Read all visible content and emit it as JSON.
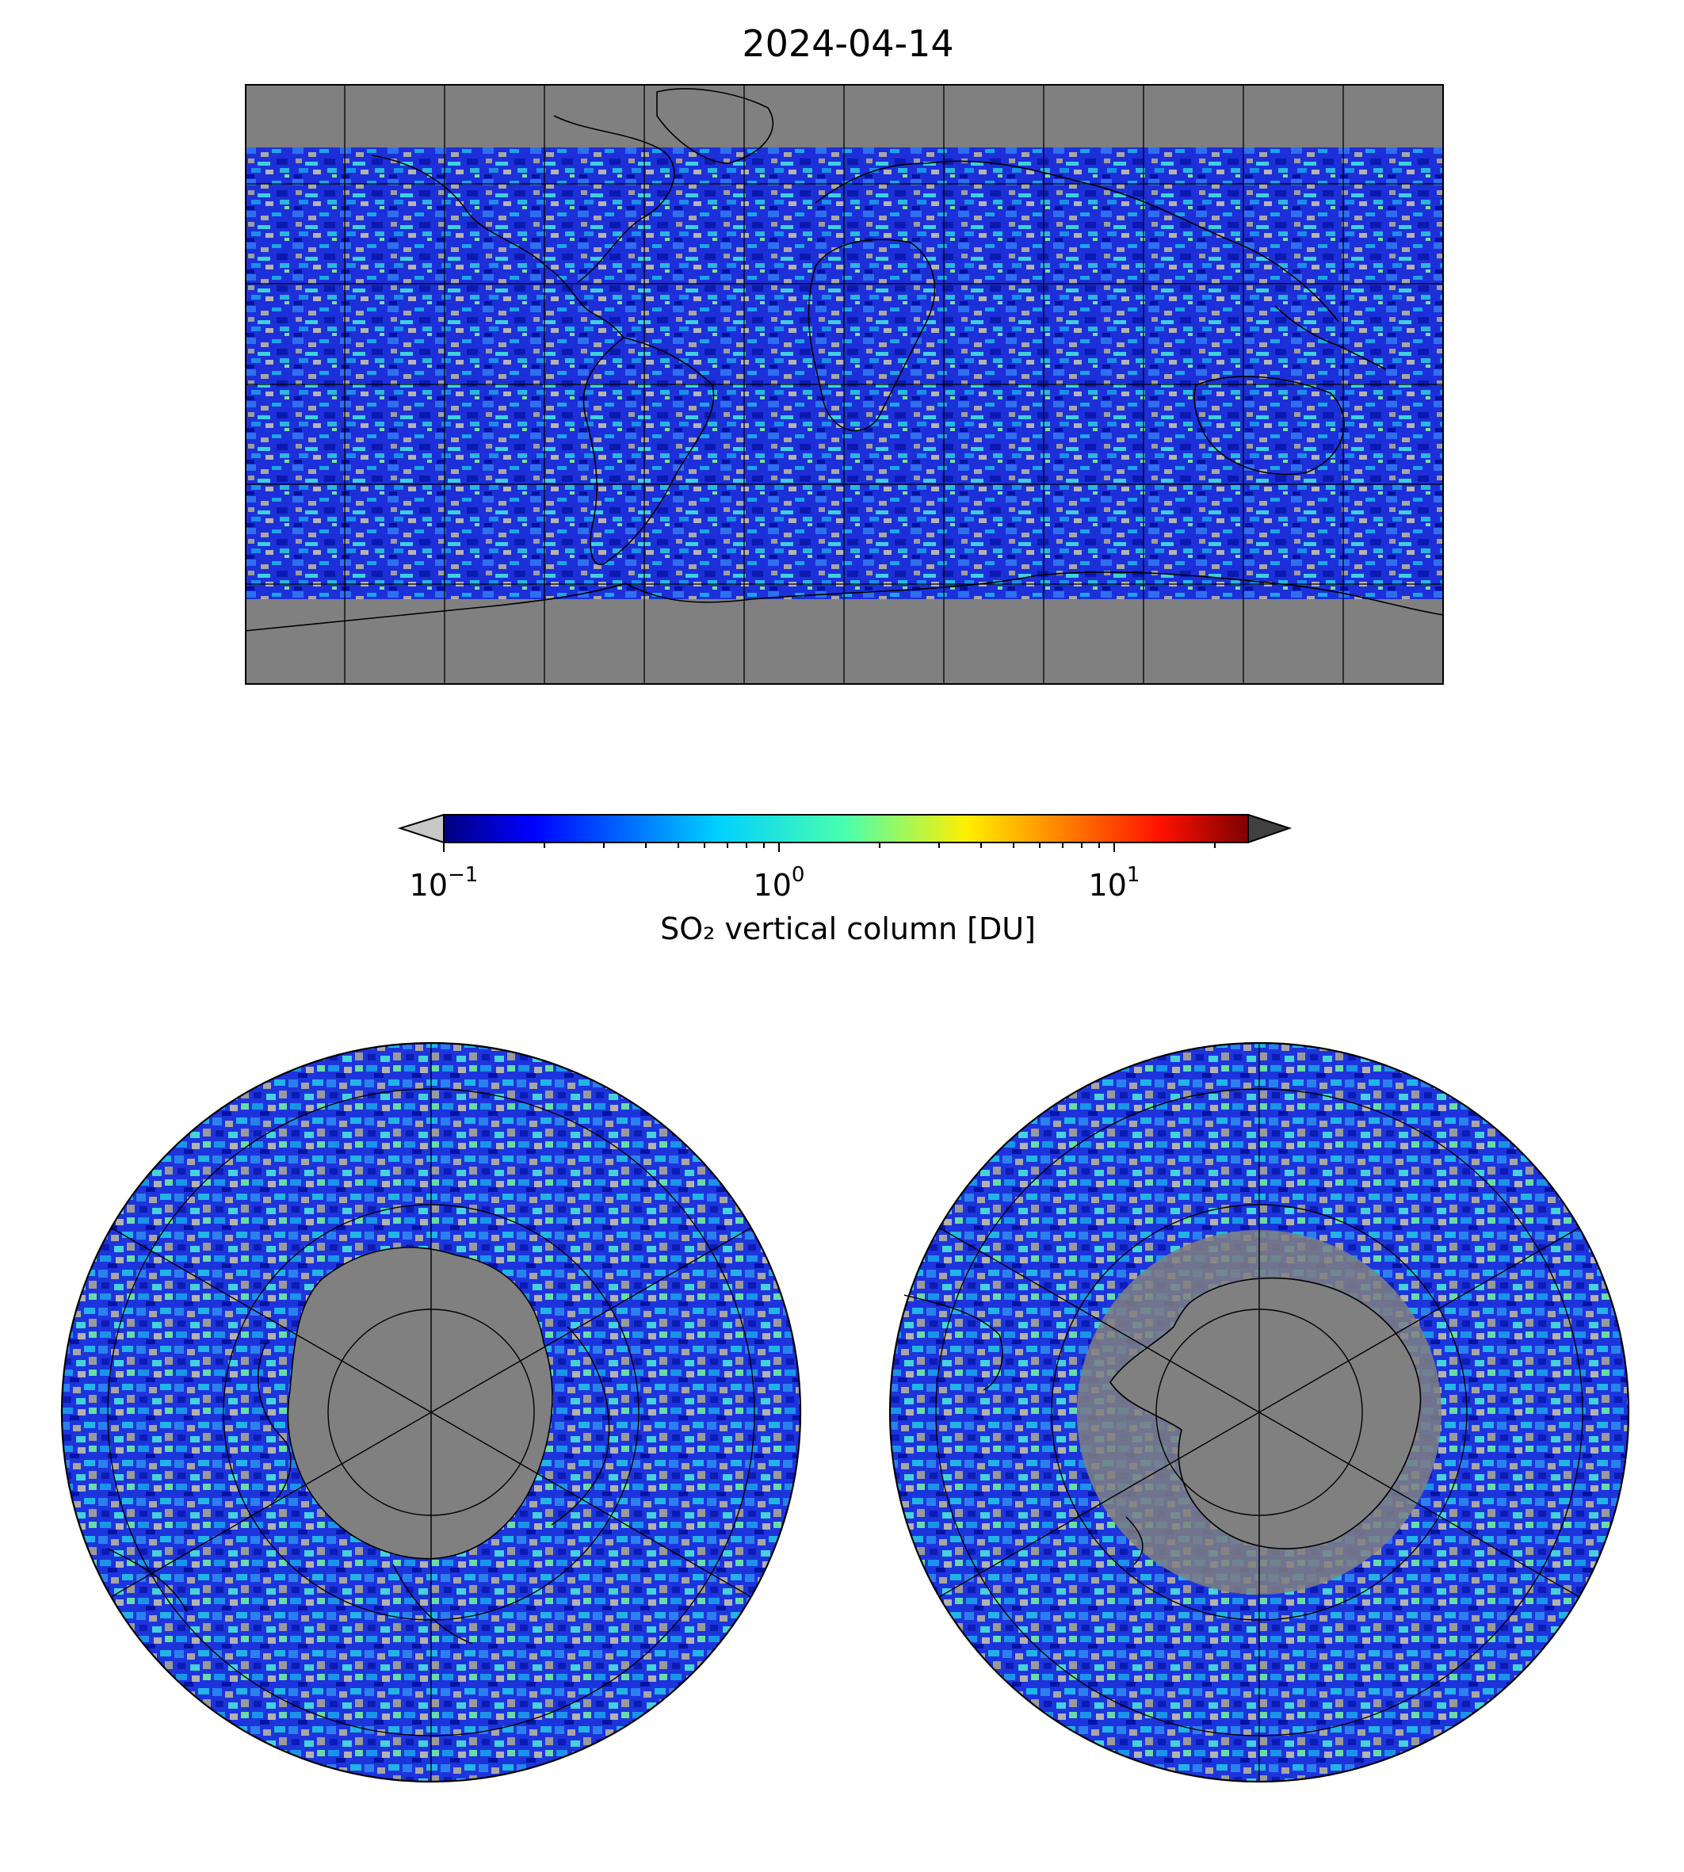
{
  "figure": {
    "title": "2024-04-14"
  },
  "colorbar": {
    "label": "SO₂ vertical column [DU]",
    "scale": "log",
    "range": [
      0.1,
      25
    ],
    "extend": "both",
    "colormap": "jet",
    "under_color": "#c8c8c8",
    "over_color": "#404040",
    "ticks": [
      {
        "base": "10",
        "exp": "−1",
        "value": 0.1
      },
      {
        "base": "10",
        "exp": "0",
        "value": 1
      },
      {
        "base": "10",
        "exp": "1",
        "value": 10
      }
    ]
  },
  "maps": {
    "background_color": "#808080",
    "coastline_color": "#000000",
    "world": {
      "projection": "plate-carree",
      "lon_range": [
        -180,
        180
      ],
      "lat_range": [
        -90,
        90
      ],
      "gridline_lon_step": 30,
      "gridline_lat_step": 30
    },
    "north_polar": {
      "projection": "north-polar-stereographic",
      "boundary_lat": 0,
      "gridline_lats": [
        30,
        60
      ],
      "gridline_lon_step": 60
    },
    "south_polar": {
      "projection": "south-polar-stereographic",
      "boundary_lat": 0,
      "gridline_lats": [
        -30,
        -60
      ],
      "gridline_lon_step": 60
    }
  }
}
